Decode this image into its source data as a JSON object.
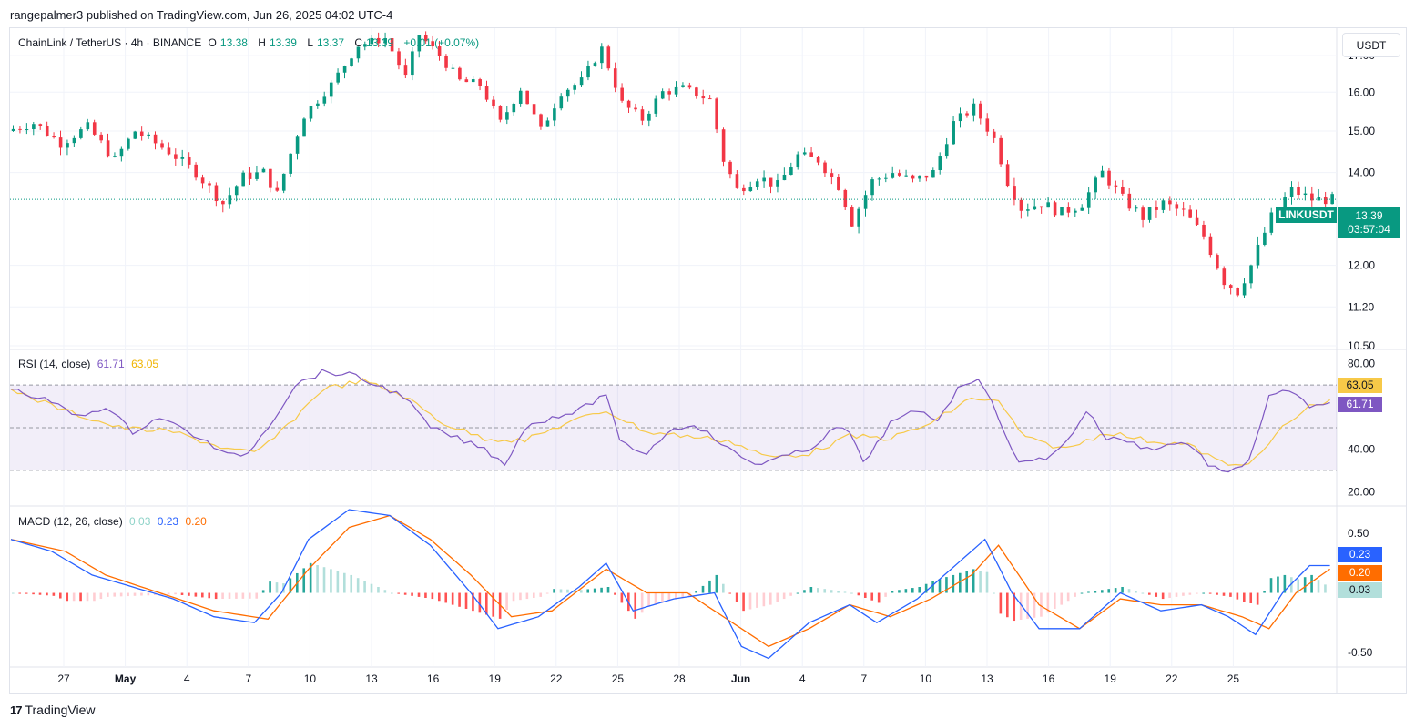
{
  "header": {
    "publisher": "rangepalmer3 published on TradingView.com, Jun 26, 2025 04:02 UTC-4"
  },
  "symbol": {
    "name": "ChainLink / TetherUS · 4h · BINANCE",
    "o_label": "O",
    "o": "13.38",
    "h_label": "H",
    "h": "13.39",
    "l_label": "L",
    "l": "13.37",
    "c_label": "C",
    "c": "13.39",
    "change": "+0.01 (+0.07%)",
    "ticker": "LINKUSDT",
    "last_price": "13.39",
    "countdown": "03:57:04"
  },
  "currency": "USDT",
  "rsi": {
    "label": "RSI (14, close)",
    "value": "61.71",
    "ma": "63.05"
  },
  "macd": {
    "label": "MACD (12, 26, close)",
    "hist": "0.03",
    "macd": "0.23",
    "signal": "0.20"
  },
  "brand": {
    "name": "TradingView"
  },
  "colors": {
    "up": "#089981",
    "down": "#f23645",
    "rsi": "#7e57c2",
    "rsi_ma": "#f7c948",
    "macd": "#2962ff",
    "signal": "#ff6d00"
  },
  "chart_data": {
    "type": "candlestick",
    "x_labels": [
      "27",
      "May",
      "4",
      "7",
      "10",
      "13",
      "16",
      "19",
      "22",
      "25",
      "28",
      "Jun",
      "4",
      "7",
      "10",
      "13",
      "16",
      "19",
      "22",
      "25"
    ],
    "price_axis": {
      "ticks": [
        "17.00",
        "16.00",
        "15.00",
        "14.00",
        "12.00",
        "11.20",
        "10.50"
      ],
      "range": [
        10.5,
        17.5
      ],
      "scale": "log"
    },
    "price_path": [
      [
        0,
        15.0
      ],
      [
        4,
        15.2
      ],
      [
        8,
        14.7
      ],
      [
        12,
        15.1
      ],
      [
        16,
        14.3
      ],
      [
        19,
        15.0
      ],
      [
        24,
        14.5
      ],
      [
        28,
        14.0
      ],
      [
        32,
        13.3
      ],
      [
        35,
        13.9
      ],
      [
        38,
        14.0
      ],
      [
        40,
        13.5
      ],
      [
        44,
        15.4
      ],
      [
        48,
        16.2
      ],
      [
        52,
        17.3
      ],
      [
        56,
        17.5
      ],
      [
        59,
        16.4
      ],
      [
        61,
        17.6
      ],
      [
        64,
        17.0
      ],
      [
        67,
        16.3
      ],
      [
        70,
        16.2
      ],
      [
        73,
        15.2
      ],
      [
        76,
        16.1
      ],
      [
        79,
        15.0
      ],
      [
        82,
        16.0
      ],
      [
        85,
        16.3
      ],
      [
        88,
        17.2
      ],
      [
        91,
        15.7
      ],
      [
        94,
        15.3
      ],
      [
        97,
        16.0
      ],
      [
        100,
        16.1
      ],
      [
        104,
        15.8
      ],
      [
        106,
        14.3
      ],
      [
        108,
        13.6
      ],
      [
        111,
        13.9
      ],
      [
        114,
        13.7
      ],
      [
        117,
        14.4
      ],
      [
        120,
        14.3
      ],
      [
        123,
        13.7
      ],
      [
        125,
        12.9
      ],
      [
        128,
        13.8
      ],
      [
        131,
        14.0
      ],
      [
        134,
        13.8
      ],
      [
        137,
        14.0
      ],
      [
        140,
        15.2
      ],
      [
        143,
        15.6
      ],
      [
        146,
        14.8
      ],
      [
        148,
        13.8
      ],
      [
        150,
        13.2
      ],
      [
        153,
        13.3
      ],
      [
        156,
        13.1
      ],
      [
        159,
        13.3
      ],
      [
        162,
        14.0
      ],
      [
        165,
        13.4
      ],
      [
        168,
        13.0
      ],
      [
        171,
        13.3
      ],
      [
        174,
        13.1
      ],
      [
        177,
        12.6
      ],
      [
        180,
        11.7
      ],
      [
        182,
        11.5
      ],
      [
        184,
        12.0
      ],
      [
        187,
        13.0
      ],
      [
        190,
        13.6
      ],
      [
        193,
        13.39
      ]
    ],
    "rsi_axis": {
      "ticks": [
        "80.00",
        "40.00",
        "20.00"
      ],
      "bands": [
        30,
        50,
        70
      ],
      "range": [
        15,
        85
      ]
    },
    "rsi_path": [
      [
        0,
        68
      ],
      [
        6,
        62
      ],
      [
        10,
        55
      ],
      [
        14,
        60
      ],
      [
        18,
        48
      ],
      [
        22,
        55
      ],
      [
        28,
        45
      ],
      [
        32,
        37
      ],
      [
        35,
        38
      ],
      [
        39,
        55
      ],
      [
        42,
        70
      ],
      [
        46,
        76
      ],
      [
        50,
        75
      ],
      [
        54,
        70
      ],
      [
        58,
        65
      ],
      [
        62,
        50
      ],
      [
        66,
        45
      ],
      [
        70,
        40
      ],
      [
        73,
        33
      ],
      [
        76,
        50
      ],
      [
        80,
        55
      ],
      [
        84,
        58
      ],
      [
        88,
        66
      ],
      [
        90,
        43
      ],
      [
        94,
        38
      ],
      [
        97,
        48
      ],
      [
        101,
        52
      ],
      [
        104,
        45
      ],
      [
        107,
        38
      ],
      [
        110,
        33
      ],
      [
        114,
        36
      ],
      [
        118,
        40
      ],
      [
        122,
        50
      ],
      [
        124,
        48
      ],
      [
        126,
        33
      ],
      [
        130,
        52
      ],
      [
        134,
        58
      ],
      [
        137,
        54
      ],
      [
        140,
        68
      ],
      [
        143,
        74
      ],
      [
        146,
        55
      ],
      [
        149,
        33
      ],
      [
        153,
        36
      ],
      [
        156,
        43
      ],
      [
        159,
        58
      ],
      [
        162,
        45
      ],
      [
        165,
        44
      ],
      [
        168,
        40
      ],
      [
        171,
        42
      ],
      [
        174,
        43
      ],
      [
        177,
        33
      ],
      [
        180,
        28
      ],
      [
        183,
        35
      ],
      [
        186,
        64
      ],
      [
        189,
        68
      ],
      [
        192,
        59
      ],
      [
        195,
        61.71
      ]
    ],
    "rsi_ma_path": [
      [
        0,
        68
      ],
      [
        8,
        58
      ],
      [
        16,
        50
      ],
      [
        24,
        48
      ],
      [
        32,
        40
      ],
      [
        36,
        38
      ],
      [
        40,
        48
      ],
      [
        46,
        68
      ],
      [
        52,
        72
      ],
      [
        58,
        65
      ],
      [
        64,
        52
      ],
      [
        70,
        45
      ],
      [
        76,
        44
      ],
      [
        82,
        52
      ],
      [
        88,
        58
      ],
      [
        94,
        48
      ],
      [
        100,
        46
      ],
      [
        106,
        44
      ],
      [
        112,
        36
      ],
      [
        118,
        38
      ],
      [
        124,
        46
      ],
      [
        130,
        45
      ],
      [
        136,
        52
      ],
      [
        142,
        64
      ],
      [
        146,
        62
      ],
      [
        150,
        45
      ],
      [
        156,
        40
      ],
      [
        162,
        48
      ],
      [
        168,
        44
      ],
      [
        174,
        42
      ],
      [
        180,
        32
      ],
      [
        184,
        35
      ],
      [
        188,
        50
      ],
      [
        192,
        60
      ],
      [
        195,
        63.05
      ]
    ],
    "macd_axis": {
      "ticks": [
        "0.50",
        "-0.50"
      ],
      "range": [
        -0.6,
        0.7
      ]
    },
    "macd_path": [
      [
        0,
        0.45
      ],
      [
        6,
        0.35
      ],
      [
        12,
        0.15
      ],
      [
        18,
        0.05
      ],
      [
        24,
        -0.05
      ],
      [
        30,
        -0.2
      ],
      [
        36,
        -0.25
      ],
      [
        40,
        0.0
      ],
      [
        44,
        0.45
      ],
      [
        50,
        0.7
      ],
      [
        56,
        0.65
      ],
      [
        62,
        0.4
      ],
      [
        68,
        0.0
      ],
      [
        72,
        -0.3
      ],
      [
        78,
        -0.2
      ],
      [
        84,
        0.05
      ],
      [
        88,
        0.25
      ],
      [
        92,
        -0.15
      ],
      [
        98,
        -0.05
      ],
      [
        104,
        0.0
      ],
      [
        108,
        -0.45
      ],
      [
        112,
        -0.55
      ],
      [
        118,
        -0.25
      ],
      [
        124,
        -0.1
      ],
      [
        128,
        -0.25
      ],
      [
        134,
        -0.05
      ],
      [
        140,
        0.25
      ],
      [
        144,
        0.45
      ],
      [
        148,
        0.0
      ],
      [
        152,
        -0.3
      ],
      [
        158,
        -0.3
      ],
      [
        164,
        0.0
      ],
      [
        170,
        -0.15
      ],
      [
        176,
        -0.1
      ],
      [
        180,
        -0.2
      ],
      [
        184,
        -0.35
      ],
      [
        188,
        0.0
      ],
      [
        192,
        0.23
      ],
      [
        195,
        0.23
      ]
    ],
    "signal_path": [
      [
        0,
        0.45
      ],
      [
        8,
        0.35
      ],
      [
        14,
        0.15
      ],
      [
        22,
        0.0
      ],
      [
        30,
        -0.15
      ],
      [
        38,
        -0.22
      ],
      [
        44,
        0.2
      ],
      [
        50,
        0.55
      ],
      [
        56,
        0.65
      ],
      [
        62,
        0.45
      ],
      [
        68,
        0.15
      ],
      [
        74,
        -0.2
      ],
      [
        80,
        -0.15
      ],
      [
        88,
        0.2
      ],
      [
        94,
        0.0
      ],
      [
        100,
        0.0
      ],
      [
        108,
        -0.3
      ],
      [
        112,
        -0.45
      ],
      [
        118,
        -0.3
      ],
      [
        124,
        -0.1
      ],
      [
        130,
        -0.2
      ],
      [
        136,
        -0.05
      ],
      [
        142,
        0.15
      ],
      [
        146,
        0.4
      ],
      [
        152,
        -0.1
      ],
      [
        158,
        -0.3
      ],
      [
        164,
        -0.05
      ],
      [
        170,
        -0.1
      ],
      [
        176,
        -0.1
      ],
      [
        182,
        -0.2
      ],
      [
        186,
        -0.3
      ],
      [
        190,
        0.0
      ],
      [
        195,
        0.2
      ]
    ]
  }
}
